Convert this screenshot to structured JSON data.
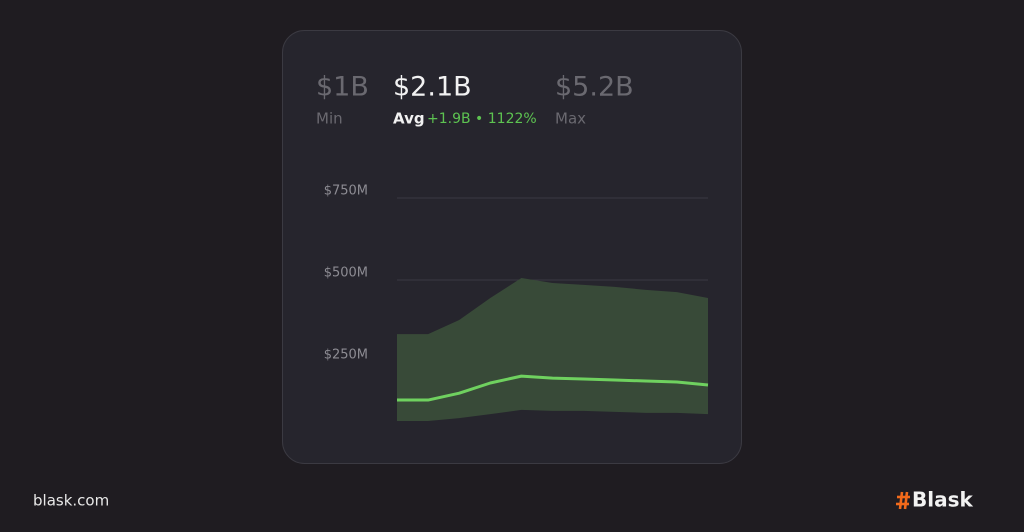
{
  "stats": [
    {
      "value": "$1B",
      "label": "Min"
    },
    {
      "value": "$2.1B",
      "label": "Avg",
      "change": "+1.9B • 1122%"
    },
    {
      "value": "$5.2B",
      "label": "Max"
    }
  ],
  "chart_data": {
    "type": "line",
    "categories": [
      null,
      null,
      null,
      null,
      null,
      null,
      null,
      null,
      null,
      null,
      null
    ],
    "series": [
      {
        "color": "#6fd15f",
        "values": [
          134,
          134,
          155,
          186,
          207,
          201,
          198,
          195,
          192,
          189,
          180
        ]
      }
    ],
    "band": {
      "color": "#384a38",
      "upper": [
        335,
        335,
        378,
        445,
        506,
        491,
        485,
        479,
        470,
        463,
        445
      ],
      "lower": [
        70,
        70,
        79,
        91,
        104,
        101,
        101,
        98,
        95,
        95,
        91
      ]
    },
    "ylim": [
      0,
      750
    ],
    "yticks": [
      {
        "value": 250,
        "label": "$250M"
      },
      {
        "value": 500,
        "label": "$500M"
      },
      {
        "value": 750,
        "label": "$750M"
      }
    ],
    "grid": true
  },
  "footer": {
    "site": "blask.com",
    "brand": "Blask"
  }
}
